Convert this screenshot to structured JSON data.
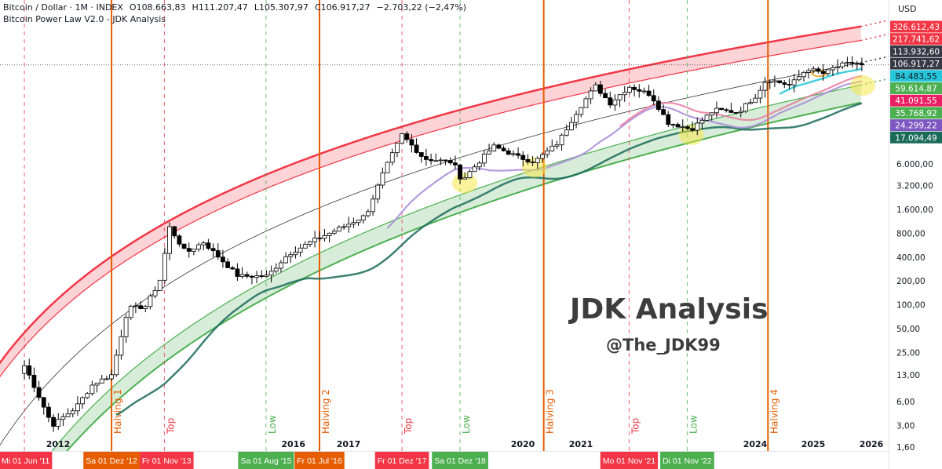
{
  "header": {
    "symbol": "Bitcoin / Dollar · 1M · INDEX",
    "open": "O108.663,83",
    "high": "H111.207,47",
    "low": "L105.307,97",
    "close": "C106.917,27",
    "change": "−2.703,22 (−2,47%)",
    "indicator": "Bitcoin Power Law V2.0 - JDK Analysis"
  },
  "watermark": {
    "title": "JDK Analysis",
    "handle": "@The_JDK99"
  },
  "colors": {
    "red": "#f23645",
    "orange": "#e65c00",
    "green": "#4caf50",
    "dark": "#363a45",
    "cyan": "#26c6da",
    "pink": "#e91e63",
    "teal": "#1b6b5a",
    "purple": "#7e57c2",
    "magenta": "#e0336b"
  },
  "chart_data": {
    "type": "candlestick",
    "scale": "log",
    "currency": "USD",
    "y_ticks": [
      "6.000,00",
      "3.200,00",
      "1.600,00",
      "800,00",
      "400,00",
      "200,00",
      "100,00",
      "50,00",
      "25,00",
      "13,00",
      "6,00",
      "3,00",
      "1,60"
    ],
    "y_tick_values": [
      6000,
      3200,
      1600,
      800,
      400,
      200,
      100,
      50,
      25,
      13,
      6,
      3,
      1.6
    ],
    "x_ticks": [
      {
        "label": "2012",
        "year": 2012
      },
      {
        "label": "2016",
        "year": 2016.05
      },
      {
        "label": "2017",
        "year": 2017
      },
      {
        "label": "2020",
        "year": 2020
      },
      {
        "label": "2021",
        "year": 2021
      },
      {
        "label": "2024",
        "year": 2024
      },
      {
        "label": "2025",
        "year": 2025
      },
      {
        "label": "2026",
        "year": 2026
      }
    ],
    "price_badges": [
      {
        "value": "326.612,43",
        "color": "#f23645"
      },
      {
        "value": "217.741,62",
        "color": "#f23645"
      },
      {
        "value": "113.932,60",
        "color": "#363a45"
      },
      {
        "value": "106.917,27",
        "color": "#363a45"
      },
      {
        "value": "84.483,55",
        "color": "#26c6da",
        "text": "#131722"
      },
      {
        "value": "59.614,87",
        "color": "#4caf50"
      },
      {
        "value": "41.091,55",
        "color": "#e91e63"
      },
      {
        "value": "35.768,92",
        "color": "#4caf50"
      },
      {
        "value": "24.299,22",
        "color": "#7e57c2"
      },
      {
        "value": "17.094,49",
        "color": "#1b6b5a"
      }
    ],
    "events": [
      {
        "type": "top",
        "date": "Mi 01 Jun '11",
        "year": 2011.42,
        "label": ""
      },
      {
        "type": "halving",
        "date": "Sa 01 Dez '12",
        "year": 2012.92,
        "label": "Halving 1"
      },
      {
        "type": "top",
        "date": "Fr 01 Nov '13",
        "year": 2013.83,
        "label": "Top"
      },
      {
        "type": "low",
        "date": "Sa 01 Aug '15",
        "year": 2015.58,
        "label": "Low"
      },
      {
        "type": "halving",
        "date": "Fr 01 Jul '16",
        "year": 2016.5,
        "label": "Halving 2"
      },
      {
        "type": "top",
        "date": "Fr 01 Dez '17",
        "year": 2017.92,
        "label": "Top"
      },
      {
        "type": "low",
        "date": "Sa 01 Dez '18",
        "year": 2018.92,
        "label": "Low"
      },
      {
        "type": "halving",
        "date": "",
        "year": 2020.36,
        "label": "Halving 3"
      },
      {
        "type": "top",
        "date": "Mo 01 Nov '21",
        "year": 2021.83,
        "label": "Top"
      },
      {
        "type": "low",
        "date": "Di 01 Nov '22",
        "year": 2022.83,
        "label": "Low"
      },
      {
        "type": "halving",
        "date": "",
        "year": 2024.22,
        "label": "Halving 4"
      }
    ],
    "price_path": [
      [
        2011.42,
        17
      ],
      [
        2011.5,
        13
      ],
      [
        2011.9,
        3
      ],
      [
        2012.3,
        5
      ],
      [
        2012.6,
        10
      ],
      [
        2012.92,
        13
      ],
      [
        2013.2,
        90
      ],
      [
        2013.5,
        95
      ],
      [
        2013.75,
        200
      ],
      [
        2013.92,
        950
      ],
      [
        2014.2,
        450
      ],
      [
        2014.5,
        620
      ],
      [
        2014.9,
        320
      ],
      [
        2015.1,
        230
      ],
      [
        2015.6,
        230
      ],
      [
        2015.95,
        430
      ],
      [
        2016.4,
        650
      ],
      [
        2016.9,
        960
      ],
      [
        2017.3,
        1350
      ],
      [
        2017.6,
        4700
      ],
      [
        2017.92,
        14000
      ],
      [
        2018.3,
        7000
      ],
      [
        2018.8,
        6300
      ],
      [
        2018.95,
        3700
      ],
      [
        2019.4,
        8500
      ],
      [
        2019.5,
        10000
      ],
      [
        2019.95,
        7200
      ],
      [
        2020.2,
        6400
      ],
      [
        2020.6,
        11000
      ],
      [
        2020.95,
        29000
      ],
      [
        2021.25,
        58000
      ],
      [
        2021.5,
        35000
      ],
      [
        2021.83,
        57000
      ],
      [
        2022.2,
        45000
      ],
      [
        2022.5,
        20000
      ],
      [
        2022.9,
        16500
      ],
      [
        2023.3,
        29000
      ],
      [
        2023.7,
        27000
      ],
      [
        2024.0,
        42500
      ],
      [
        2024.2,
        71000
      ],
      [
        2024.6,
        59000
      ],
      [
        2024.9,
        96000
      ],
      [
        2025.2,
        82000
      ],
      [
        2025.3,
        94500
      ],
      [
        2025.5,
        107000
      ],
      [
        2025.7,
        114000
      ],
      [
        2025.83,
        106917
      ]
    ],
    "power_law_bands": {
      "upper": [
        "326.612,43",
        "217.741,62"
      ],
      "fair": "113.932,60",
      "lower": [
        "59.614,87",
        "35.768,92"
      ]
    },
    "highlights": [
      2019.0,
      2020.2,
      2022.9,
      2025.85
    ]
  }
}
